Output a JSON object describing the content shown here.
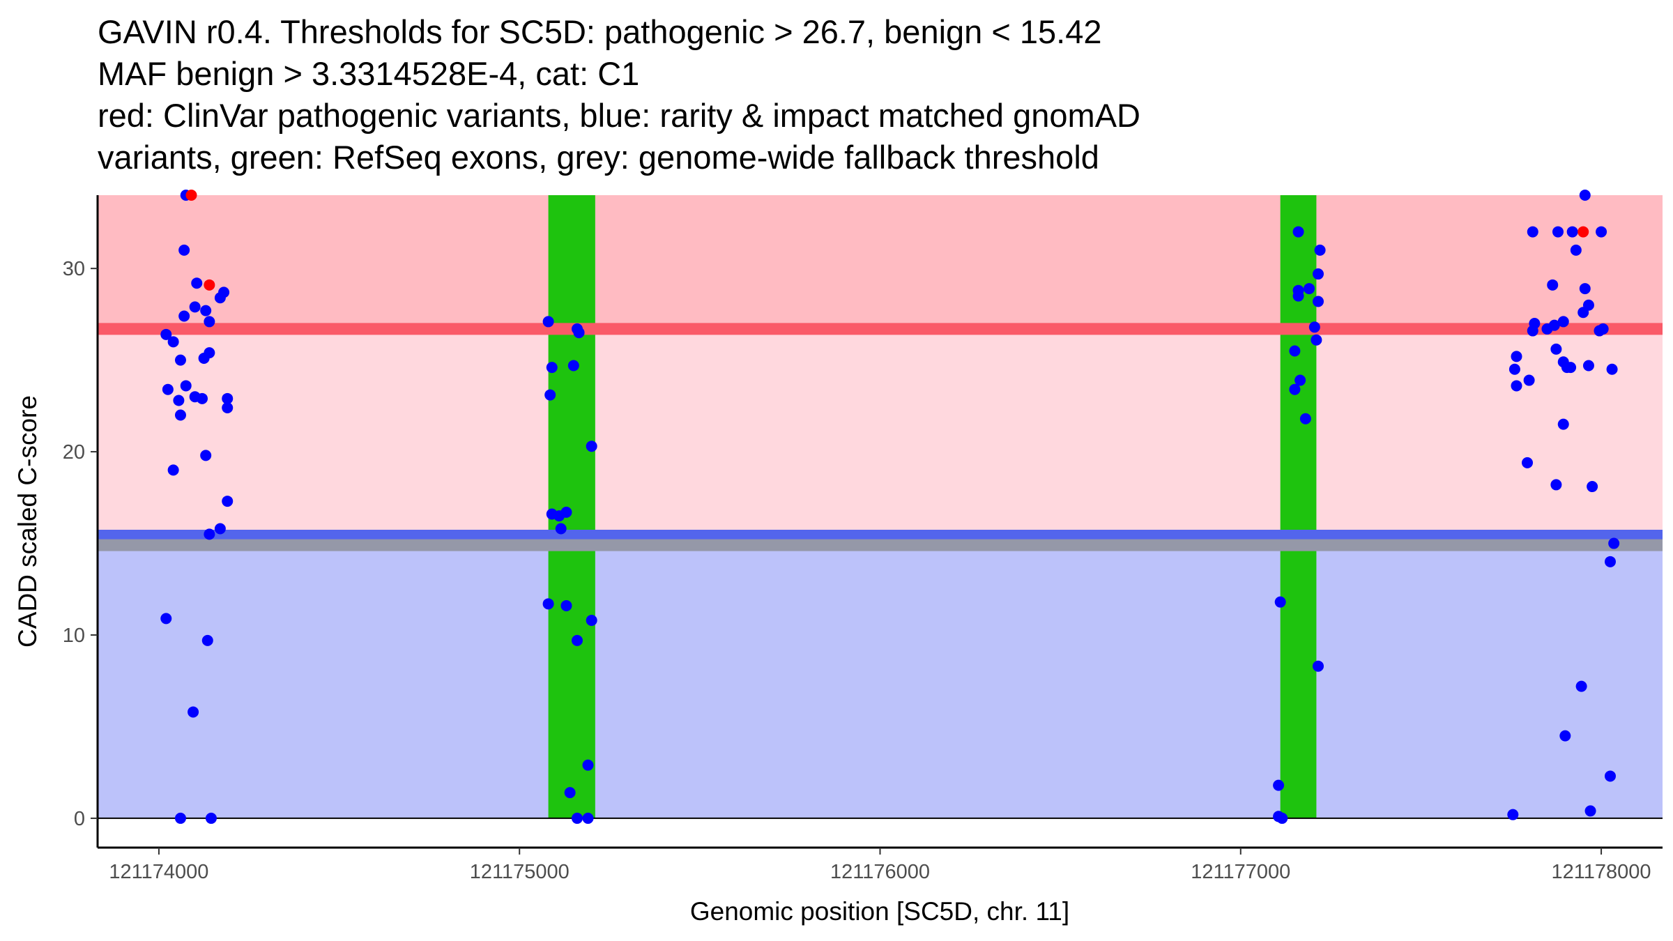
{
  "chart_data": {
    "type": "scatter",
    "title_lines": [
      "GAVIN r0.4. Thresholds for SC5D: pathogenic > 26.7, benign < 15.42",
      "MAF benign > 3.3314528E-4, cat: C1",
      "red: ClinVar pathogenic variants, blue: rarity & impact matched gnomAD",
      "variants, green: RefSeq exons, grey: genome-wide fallback threshold"
    ],
    "xlabel": "Genomic position [SC5D, chr. 11]",
    "ylabel": "CADD scaled C-score",
    "xlim": [
      121173830,
      121178170
    ],
    "ylim": [
      -1.6,
      34.0
    ],
    "x_ticks": [
      121174000,
      121175000,
      121176000,
      121177000,
      121178000
    ],
    "x_tick_labels": [
      "121174000",
      "121175000",
      "121176000",
      "121177000",
      "121178000"
    ],
    "y_ticks": [
      0,
      10,
      20,
      30
    ],
    "y_tick_labels": [
      "0",
      "10",
      "20",
      "30"
    ],
    "thresholds": {
      "pathogenic": 26.7,
      "benign": 15.42,
      "fallback": 14.9,
      "cadd_max": 34
    },
    "regions": [
      {
        "name": "pathogenic-zone",
        "from": 26.7,
        "to": 34,
        "color": "#ffbbc2"
      },
      {
        "name": "uncertain-zone",
        "from": 15.42,
        "to": 26.7,
        "color": "#ffd8de"
      },
      {
        "name": "benign-zone",
        "from": 0,
        "to": 15.42,
        "color": "#bcc2fa"
      }
    ],
    "lines": [
      {
        "name": "pathogenic-threshold-line",
        "y": 26.7,
        "color": "#fa5a68"
      },
      {
        "name": "benign-threshold-line",
        "y": 15.42,
        "color": "#5365ec"
      },
      {
        "name": "fallback-threshold-line",
        "y": 14.9,
        "color": "#9598a8"
      }
    ],
    "exons": [
      {
        "start": 121175080,
        "end": 121175210,
        "color": "#1ec30e"
      },
      {
        "start": 121177110,
        "end": 121177210,
        "color": "#1ec30e"
      }
    ],
    "series": [
      {
        "name": "ClinVar pathogenic variants",
        "color": "#ff0000",
        "points": [
          [
            121174090,
            34.0
          ],
          [
            121174140,
            29.1
          ],
          [
            121177950,
            32.0
          ]
        ]
      },
      {
        "name": "rarity & impact matched gnomAD variants",
        "color": "#0000ff",
        "points": [
          [
            121174075,
            34.0
          ],
          [
            121174070,
            31.0
          ],
          [
            121174070,
            27.4
          ],
          [
            121174020,
            26.4
          ],
          [
            121174040,
            26.0
          ],
          [
            121174060,
            25.0
          ],
          [
            121174060,
            22.0
          ],
          [
            121174025,
            23.4
          ],
          [
            121174055,
            22.8
          ],
          [
            121174075,
            23.6
          ],
          [
            121174100,
            23.0
          ],
          [
            121174120,
            22.9
          ],
          [
            121174040,
            19.0
          ],
          [
            121174100,
            27.9
          ],
          [
            121174105,
            29.2
          ],
          [
            121174130,
            27.7
          ],
          [
            121174140,
            27.1
          ],
          [
            121174125,
            25.1
          ],
          [
            121174140,
            25.4
          ],
          [
            121174170,
            28.4
          ],
          [
            121174180,
            28.7
          ],
          [
            121174190,
            22.9
          ],
          [
            121174190,
            22.4
          ],
          [
            121174130,
            19.8
          ],
          [
            121174190,
            17.3
          ],
          [
            121174170,
            15.8
          ],
          [
            121174140,
            15.5
          ],
          [
            121174020,
            10.9
          ],
          [
            121174135,
            9.7
          ],
          [
            121174095,
            5.8
          ],
          [
            121174060,
            0.0
          ],
          [
            121174145,
            0.0
          ],
          [
            121175080,
            27.1
          ],
          [
            121175090,
            24.6
          ],
          [
            121175085,
            23.1
          ],
          [
            121175160,
            26.7
          ],
          [
            121175165,
            26.5
          ],
          [
            121175150,
            24.7
          ],
          [
            121175200,
            20.3
          ],
          [
            121175090,
            16.6
          ],
          [
            121175110,
            16.5
          ],
          [
            121175130,
            16.7
          ],
          [
            121175115,
            15.8
          ],
          [
            121175080,
            11.7
          ],
          [
            121175130,
            11.6
          ],
          [
            121175160,
            9.7
          ],
          [
            121175200,
            10.8
          ],
          [
            121175190,
            2.9
          ],
          [
            121175140,
            1.4
          ],
          [
            121175160,
            0.0
          ],
          [
            121175190,
            0.0
          ],
          [
            121177160,
            32.0
          ],
          [
            121177220,
            31.0
          ],
          [
            121177215,
            29.7
          ],
          [
            121177160,
            28.8
          ],
          [
            121177190,
            28.9
          ],
          [
            121177160,
            28.5
          ],
          [
            121177215,
            28.2
          ],
          [
            121177205,
            26.8
          ],
          [
            121177210,
            26.1
          ],
          [
            121177150,
            25.5
          ],
          [
            121177165,
            23.9
          ],
          [
            121177150,
            23.4
          ],
          [
            121177180,
            21.8
          ],
          [
            121177215,
            8.3
          ],
          [
            121177110,
            11.8
          ],
          [
            121177105,
            1.8
          ],
          [
            121177105,
            0.1
          ],
          [
            121177115,
            0.0
          ],
          [
            121177810,
            32.0
          ],
          [
            121177880,
            32.0
          ],
          [
            121177920,
            32.0
          ],
          [
            121178000,
            32.0
          ],
          [
            121177955,
            34.0
          ],
          [
            121177930,
            31.0
          ],
          [
            121177865,
            29.1
          ],
          [
            121177955,
            28.9
          ],
          [
            121177965,
            28.0
          ],
          [
            121177950,
            27.6
          ],
          [
            121177895,
            27.1
          ],
          [
            121177870,
            26.9
          ],
          [
            121177815,
            27.0
          ],
          [
            121177810,
            26.6
          ],
          [
            121177850,
            26.7
          ],
          [
            121177995,
            26.6
          ],
          [
            121178005,
            26.7
          ],
          [
            121177765,
            25.2
          ],
          [
            121177875,
            25.6
          ],
          [
            121177760,
            24.5
          ],
          [
            121177895,
            24.9
          ],
          [
            121177905,
            24.6
          ],
          [
            121177915,
            24.6
          ],
          [
            121177965,
            24.7
          ],
          [
            121178030,
            24.5
          ],
          [
            121177800,
            23.9
          ],
          [
            121177765,
            23.6
          ],
          [
            121177895,
            21.5
          ],
          [
            121177795,
            19.4
          ],
          [
            121177875,
            18.2
          ],
          [
            121177975,
            18.1
          ],
          [
            121178035,
            15.0
          ],
          [
            121178025,
            14.0
          ],
          [
            121177945,
            7.2
          ],
          [
            121177900,
            4.5
          ],
          [
            121178025,
            2.3
          ],
          [
            121177970,
            0.4
          ],
          [
            121177755,
            0.2
          ]
        ]
      }
    ]
  }
}
